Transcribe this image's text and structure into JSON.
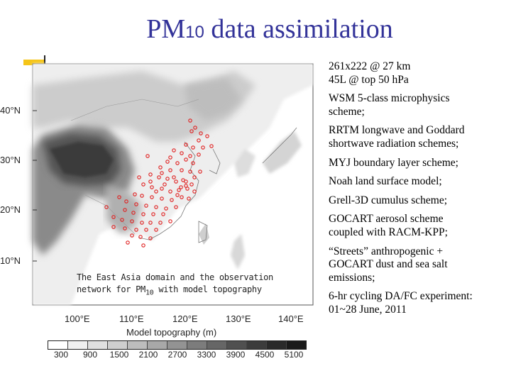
{
  "title": {
    "main": "PM",
    "sub": "10",
    "rest": " data assimilation"
  },
  "map": {
    "lat_labels": [
      "40°N",
      "30°N",
      "20°N",
      "10°N"
    ],
    "lon_labels": [
      "100°E",
      "110°E",
      "120°E",
      "130°E",
      "140°E"
    ],
    "caption_line1": "The East Asia domain and the observation",
    "caption_line2_pre": "network for PM",
    "caption_line2_sub": "10",
    "caption_line2_post": " with model topography",
    "colorbar_title": "Model topography (m)",
    "colorbar_ticks": [
      "300",
      "900",
      "1500",
      "2100",
      "2700",
      "3300",
      "3900",
      "4500",
      "5100"
    ],
    "colorbar_colors": [
      "#ffffff",
      "#f0f0f0",
      "#e0e0e0",
      "#cfcfcf",
      "#bdbdbd",
      "#a8a8a8",
      "#939393",
      "#7c7c7c",
      "#666666",
      "#505050",
      "#3c3c3c",
      "#2a2a2a",
      "#1a1a1a"
    ],
    "station_color": "#e02020"
  },
  "bullets": [
    {
      "line1": "261x222 @ 27 km",
      "line2": "45L @ top 50 hPa"
    },
    {
      "line1": "WSM 5-class microphysics",
      "line2": "scheme;"
    },
    {
      "line1": "RRTM longwave and Goddard",
      "line2": "shortwave radiation schemes;"
    },
    {
      "line1": "MYJ boundary layer scheme;",
      "line2": ""
    },
    {
      "line1": "Noah land surface model;",
      "line2": ""
    },
    {
      "line1": "Grell-3D cumulus scheme;",
      "line2": ""
    },
    {
      "line1": "GOCART aerosol scheme",
      "line2": "coupled with RACM-KPP;"
    },
    {
      "line1": "“Streets” anthropogenic +",
      "line2": "GOCART dust and sea salt",
      "line3": "emissions;"
    },
    {
      "line1": "6-hr cycling DA/FC experiment:",
      "line2": "01~28 June, 2011"
    }
  ]
}
